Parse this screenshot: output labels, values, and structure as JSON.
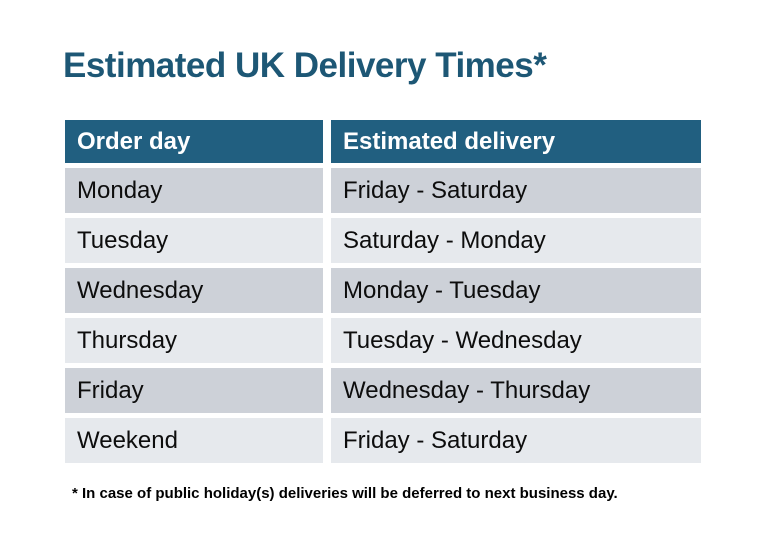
{
  "title": "Estimated UK Delivery Times*",
  "table": {
    "columns": [
      "Order day",
      "Estimated delivery"
    ],
    "rows": [
      {
        "order_day": "Monday",
        "estimated_delivery": "Friday - Saturday"
      },
      {
        "order_day": "Tuesday",
        "estimated_delivery": "Saturday - Monday"
      },
      {
        "order_day": "Wednesday",
        "estimated_delivery": "Monday - Tuesday"
      },
      {
        "order_day": "Thursday",
        "estimated_delivery": "Tuesday - Wednesday"
      },
      {
        "order_day": "Friday",
        "estimated_delivery": "Wednesday - Thursday"
      },
      {
        "order_day": "Weekend",
        "estimated_delivery": "Friday - Saturday"
      }
    ]
  },
  "footnote": "* In case of public holiday(s) deliveries will be deferred to next business day.",
  "colors": {
    "title": "#1d5775",
    "header_bg": "#215f80",
    "row_dark": "#cdd1d8",
    "row_light": "#e6e9ed"
  }
}
